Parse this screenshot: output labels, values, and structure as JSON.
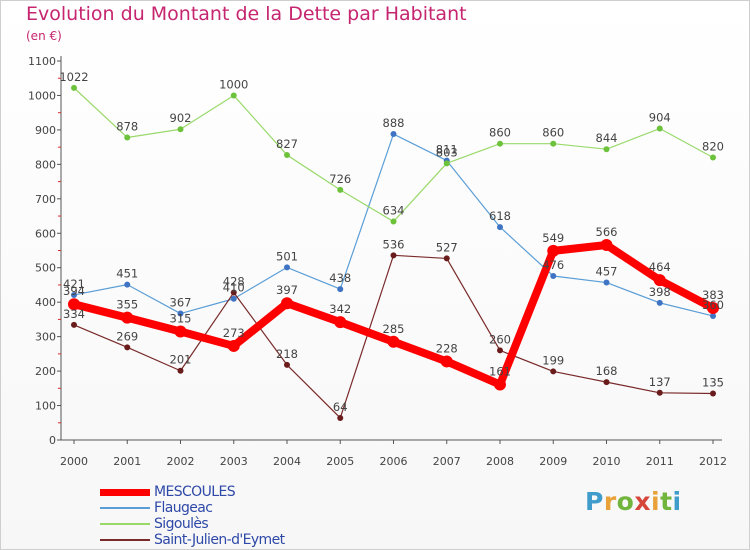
{
  "title": "Evolution du Montant de la Dette par Habitant",
  "subtitle": "(en €)",
  "logo_text": "Proxiti",
  "chart_data": {
    "type": "line",
    "x": [
      "2000",
      "2001",
      "2002",
      "2003",
      "2004",
      "2005",
      "2006",
      "2007",
      "2008",
      "2009",
      "2010",
      "2011",
      "2012"
    ],
    "ylim": [
      0,
      1100
    ],
    "yticks": [
      0,
      100,
      200,
      300,
      400,
      500,
      600,
      700,
      800,
      900,
      1000,
      1100
    ],
    "grid": false,
    "legend_position": "bottom-left",
    "series": [
      {
        "name": "MESCOULES",
        "color": "#ff0000",
        "marker": "#ff0000",
        "emphasis": true,
        "values": [
          394,
          355,
          315,
          273,
          397,
          342,
          285,
          228,
          161,
          549,
          566,
          464,
          383
        ]
      },
      {
        "name": "Flaugeac",
        "color": "#5b9ed6",
        "marker": "#3f74c4",
        "values": [
          421,
          451,
          367,
          410,
          501,
          438,
          888,
          811,
          618,
          476,
          457,
          398,
          360
        ]
      },
      {
        "name": "Sigoulès",
        "color": "#99d96a",
        "marker": "#6cc23a",
        "values": [
          1022,
          878,
          902,
          1000,
          827,
          726,
          634,
          803,
          860,
          860,
          844,
          904,
          820
        ]
      },
      {
        "name": "Saint-Julien-d'Eymet",
        "color": "#7a2a2a",
        "marker": "#6a1c1c",
        "values": [
          334,
          269,
          201,
          428,
          218,
          64,
          536,
          527,
          260,
          199,
          168,
          137,
          135
        ]
      }
    ]
  }
}
